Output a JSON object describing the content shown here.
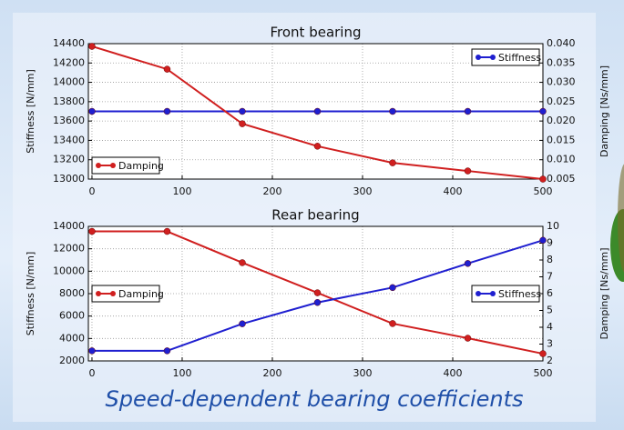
{
  "caption": "Speed-dependent bearing coefficients",
  "chart_data": [
    {
      "type": "line",
      "title": "Front bearing",
      "ylabel": "Stiffness [N/mm]",
      "y2label": "Damping [Ns/mm]",
      "x": [
        0,
        83.33,
        166.67,
        250,
        333.33,
        416.67,
        500
      ],
      "xlim": [
        -4,
        500
      ],
      "xticks": [
        0,
        100,
        200,
        300,
        400,
        500
      ],
      "ylim": [
        13000,
        14400
      ],
      "yticks": [
        13000,
        13200,
        13400,
        13600,
        13800,
        14000,
        14200,
        14400
      ],
      "y2lim": [
        0.005,
        0.04
      ],
      "y2ticks": [
        0.005,
        {
          "value": 0.01,
          "label": "0.010"
        },
        0.015,
        {
          "value": 0.02,
          "label": "0.020"
        },
        0.025,
        {
          "value": 0.03,
          "label": "0.030"
        },
        0.035,
        {
          "value": 0.04,
          "label": "0.040"
        }
      ],
      "grid": true,
      "series": [
        {
          "name": "Stiffness",
          "color": "#1f1fd0",
          "legend_loc": "upper right",
          "values": [
            13700,
            13700,
            13700,
            13700,
            13700,
            13700,
            13700
          ]
        },
        {
          "name": "Damping",
          "color": "#d01f1f",
          "axis": "y2",
          "legend_loc": "lower left",
          "values": [
            0.0393,
            0.0334,
            0.0193,
            0.0135,
            0.0092,
            0.0071,
            0.005
          ]
        }
      ]
    },
    {
      "type": "line",
      "title": "Rear bearing",
      "ylabel": "Stiffness [N/mm]",
      "y2label": "Damping [Ns/mm]",
      "x": [
        0,
        83.33,
        166.67,
        250,
        333.33,
        416.67,
        500
      ],
      "xlim": [
        -4,
        500
      ],
      "xticks": [
        0,
        100,
        200,
        300,
        400,
        500
      ],
      "ylim": [
        2000,
        14000
      ],
      "yticks": [
        2000,
        4000,
        6000,
        8000,
        10000,
        12000,
        14000
      ],
      "y2lim": [
        2,
        10
      ],
      "y2ticks": [
        2,
        3,
        4,
        5,
        6,
        7,
        8,
        9,
        10
      ],
      "grid": true,
      "series": [
        {
          "name": "Damping",
          "color": "#d01f1f",
          "axis": "y2",
          "legend_loc": "center left",
          "values": [
            9.7,
            9.7,
            7.84,
            6.05,
            4.22,
            3.35,
            2.43
          ]
        },
        {
          "name": "Stiffness",
          "color": "#1f1fd0",
          "legend_loc": "center right",
          "values": [
            2900,
            2900,
            5310,
            7210,
            8540,
            10690,
            12760
          ]
        }
      ]
    }
  ]
}
